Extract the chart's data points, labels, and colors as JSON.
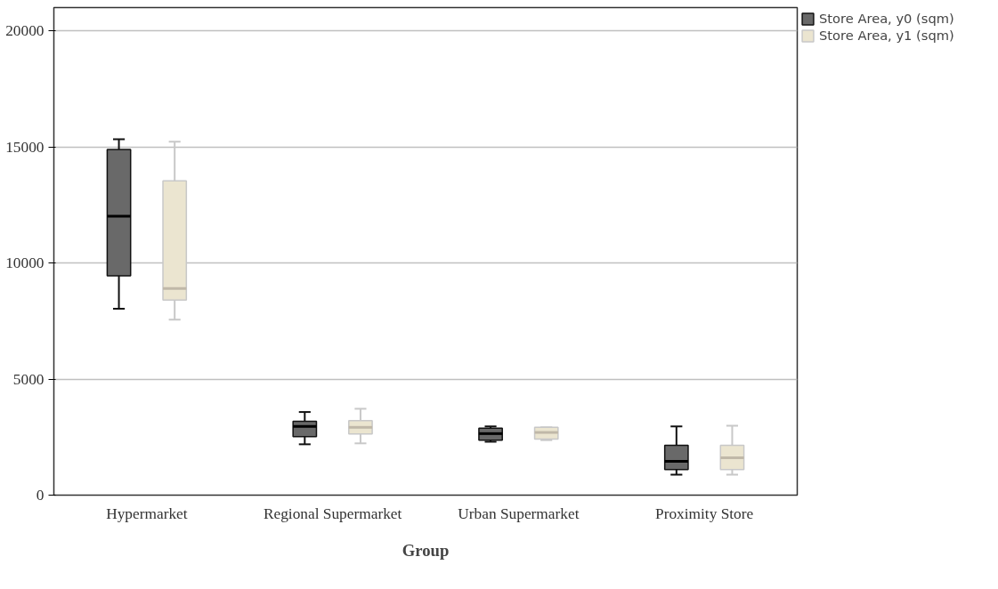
{
  "chart_data": {
    "type": "box",
    "xlabel": "Group",
    "categories": [
      "Hypermarket",
      "Regional Supermarket",
      "Urban Supermarket",
      "Proximity Store"
    ],
    "ylim": [
      0,
      21000
    ],
    "yticks": [
      0,
      5000,
      10000,
      15000,
      20000
    ],
    "grid": "y",
    "legend": "top right",
    "series": [
      {
        "name": "Store Area, y0 (sqm)",
        "color": "#696969",
        "boxes": [
          {
            "low": 8030,
            "q1": 9450,
            "median": 12010,
            "q3": 14890,
            "high": 15330
          },
          {
            "low": 2190,
            "q1": 2520,
            "median": 2960,
            "q3": 3180,
            "high": 3580
          },
          {
            "low": 2300,
            "q1": 2370,
            "median": 2650,
            "q3": 2880,
            "high": 2960
          },
          {
            "low": 880,
            "q1": 1100,
            "median": 1460,
            "q3": 2150,
            "high": 2960
          }
        ]
      },
      {
        "name": "Store Area, y1 (sqm)",
        "color": "#ebe5d0",
        "boxes": [
          {
            "low": 7560,
            "q1": 8400,
            "median": 8900,
            "q3": 13540,
            "high": 15220
          },
          {
            "low": 2230,
            "q1": 2630,
            "median": 2920,
            "q3": 3210,
            "high": 3720
          },
          {
            "low": 2370,
            "q1": 2410,
            "median": 2700,
            "q3": 2920,
            "high": 2920
          },
          {
            "low": 880,
            "q1": 1100,
            "median": 1610,
            "q3": 2150,
            "high": 2990
          }
        ]
      }
    ]
  }
}
